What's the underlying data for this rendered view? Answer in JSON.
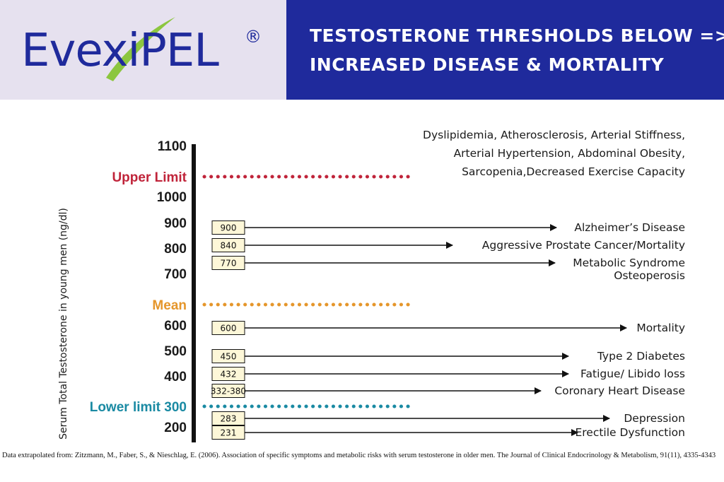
{
  "header": {
    "logo_text": "EvexiPEL",
    "logo_mark": "®",
    "title_line1": "TESTOSTERONE THRESHOLDS BELOW =>",
    "title_line2": "INCREASED DISEASE & MORTALITY"
  },
  "colors": {
    "header_blue": "#1f2a9c",
    "header_lavender": "#e6e1ef",
    "logo_swoosh_green": "#8cc63f",
    "upper_limit_red": "#c0243a",
    "mean_orange": "#e5962b",
    "lower_limit_teal": "#1a8aa3",
    "box_fill": "#fdf7d8"
  },
  "chart_data": {
    "type": "threshold-arrow-chart",
    "ylabel": "Serum Total Testosterone in young men (ng/dl)",
    "tick_labels": [
      "1100",
      "1000",
      "900",
      "800",
      "700",
      "600",
      "500",
      "400",
      "200"
    ],
    "reference_lines": [
      {
        "label": "Upper Limit",
        "color": "#c0243a"
      },
      {
        "label": "Mean",
        "color": "#e5962b"
      },
      {
        "label": "Lower limit 300",
        "color": "#1a8aa3"
      }
    ],
    "top_note": [
      "Dyslipidemia, Atherosclerosis, Arterial Stiffness,",
      "Arterial Hypertension, Abdominal Obesity,",
      "Sarcopenia,Decreased Exercise Capacity"
    ],
    "thresholds": [
      {
        "value": "900",
        "labels": [
          "Alzheimer’s Disease"
        ]
      },
      {
        "value": "840",
        "labels": [
          "Aggressive Prostate Cancer/Mortality"
        ]
      },
      {
        "value": "770",
        "labels": [
          "Metabolic Syndrome",
          "Osteoperosis"
        ]
      },
      {
        "value": "600",
        "labels": [
          "Mortality"
        ]
      },
      {
        "value": "450",
        "labels": [
          "Type 2 Diabetes"
        ]
      },
      {
        "value": "432",
        "labels": [
          "Fatigue/ Libido loss"
        ]
      },
      {
        "value": "332-380",
        "labels": [
          "Coronary Heart Disease"
        ]
      },
      {
        "value": "283",
        "labels": [
          "Depression"
        ]
      },
      {
        "value": "231",
        "labels": [
          "Erectile Dysfunction"
        ]
      }
    ]
  },
  "citation": "Data extrapolated from: Zitzmann, M., Faber, S., & Nieschlag, E. (2006). Association of specific symptoms and metabolic risks with serum testosterone in older men. The Journal of Clinical Endocrinology & Metabolism, 91(11), 4335-4343"
}
